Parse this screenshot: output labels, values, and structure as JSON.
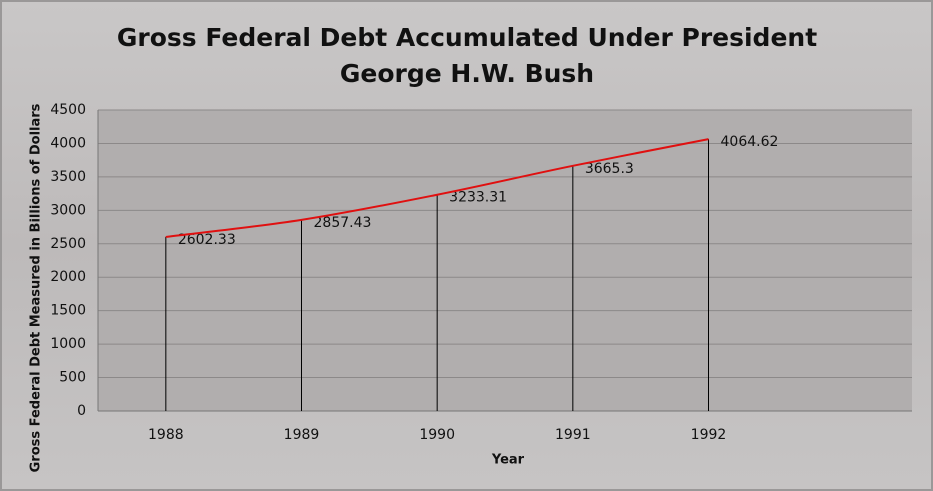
{
  "chart_data": {
    "type": "line",
    "title": "Gross Federal Debt Accumulated Under President George H.W. Bush",
    "x_label": "Year",
    "y_label": "Gross Federal Debt Measured in Billions of Dollars",
    "x": [
      1988,
      1989,
      1990,
      1991,
      1992
    ],
    "xlim": [
      1987.5,
      1993.5
    ],
    "series": [
      {
        "color": "#e01010",
        "values": [
          2602.33,
          2857.43,
          3233.31,
          3665.3,
          4064.62
        ]
      }
    ],
    "ylim": [
      0,
      4500
    ],
    "yticks": [
      0,
      500,
      1000,
      1500,
      2000,
      2500,
      3000,
      3500,
      4000,
      4500
    ],
    "grid": true
  }
}
